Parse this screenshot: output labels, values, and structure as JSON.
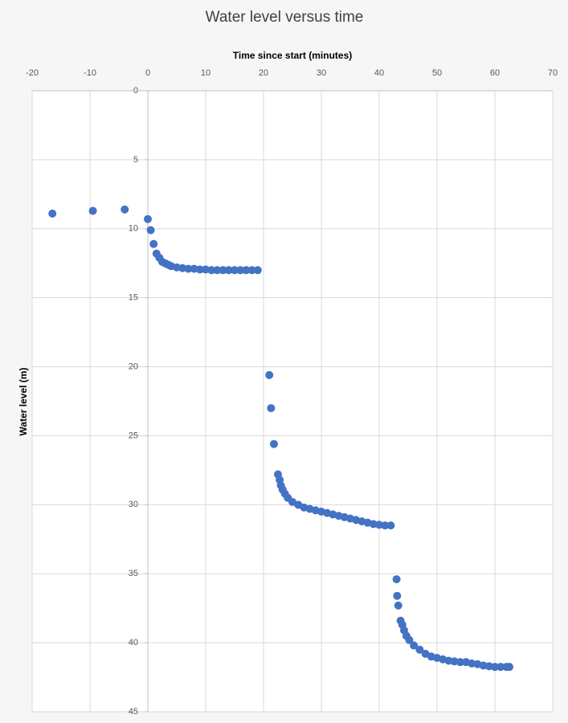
{
  "chart_data": {
    "type": "scatter",
    "title": "Water level versus time",
    "x_label": "Time since start (minutes)",
    "y_label": "Water level (m)",
    "x_axis_position": "top",
    "y_inverted": true,
    "grid": true,
    "color": "#4472c4",
    "xlim": [
      -20,
      70
    ],
    "xticks": [
      -20,
      -10,
      0,
      10,
      20,
      30,
      40,
      50,
      60,
      70
    ],
    "ylim": [
      0,
      45
    ],
    "yticks": [
      0,
      5,
      10,
      15,
      20,
      25,
      30,
      35,
      40,
      45
    ],
    "x": [
      -16.5,
      -9.5,
      -4,
      0,
      0.5,
      1,
      1.5,
      2,
      2.5,
      3,
      3.5,
      4,
      5,
      6,
      7,
      8,
      9,
      10,
      11,
      12,
      13,
      14,
      15,
      16,
      17,
      18,
      19,
      21,
      21.3,
      21.8,
      22.5,
      22.8,
      23,
      23.3,
      23.7,
      24.2,
      25,
      26,
      27,
      28,
      29,
      30,
      31,
      32,
      33,
      34,
      35,
      36,
      37,
      38,
      39,
      40,
      41,
      42,
      43,
      43.1,
      43.3,
      43.7,
      44,
      44.3,
      44.7,
      45.2,
      46,
      47,
      48,
      49,
      50,
      51,
      52,
      53,
      54,
      55,
      56,
      57,
      58,
      59,
      60,
      61,
      62,
      62.5
    ],
    "values": [
      8.9,
      8.7,
      8.6,
      9.3,
      10.1,
      11.1,
      11.8,
      12.1,
      12.4,
      12.5,
      12.6,
      12.7,
      12.8,
      12.85,
      12.9,
      12.9,
      12.95,
      12.95,
      13.0,
      13.0,
      13.0,
      13.0,
      13.0,
      13.0,
      13.0,
      13.0,
      13.0,
      20.6,
      23.0,
      25.6,
      27.8,
      28.2,
      28.6,
      28.9,
      29.2,
      29.5,
      29.8,
      30.0,
      30.2,
      30.3,
      30.4,
      30.5,
      30.6,
      30.7,
      30.8,
      30.9,
      31.0,
      31.1,
      31.2,
      31.3,
      31.4,
      31.45,
      31.5,
      31.5,
      35.4,
      36.6,
      37.3,
      38.4,
      38.7,
      39.1,
      39.5,
      39.8,
      40.2,
      40.5,
      40.8,
      41.0,
      41.1,
      41.2,
      41.3,
      41.35,
      41.4,
      41.4,
      41.5,
      41.55,
      41.65,
      41.7,
      41.75,
      41.75,
      41.75,
      41.75
    ]
  }
}
